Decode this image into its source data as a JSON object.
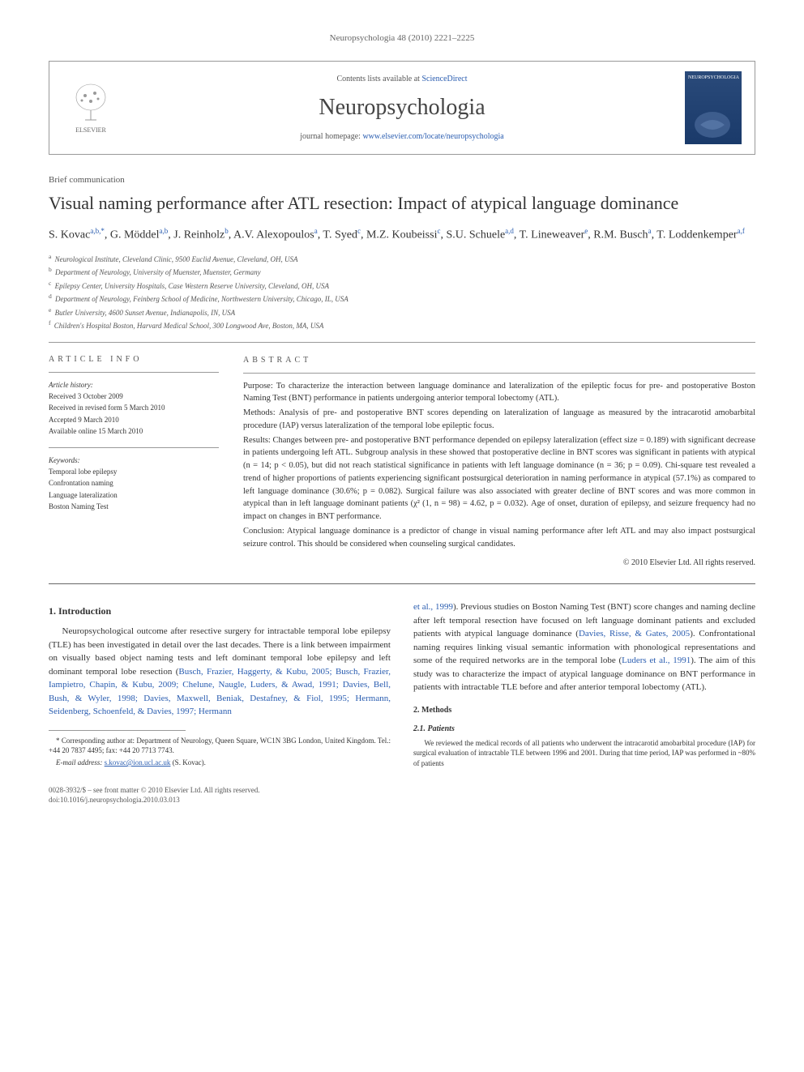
{
  "running_header": "Neuropsychologia 48 (2010) 2221–2225",
  "journal_box": {
    "contents_prefix": "Contents lists available at ",
    "contents_link": "ScienceDirect",
    "journal_name": "Neuropsychologia",
    "homepage_prefix": "journal homepage: ",
    "homepage_url": "www.elsevier.com/locate/neuropsychologia",
    "publisher": "ELSEVIER",
    "cover_label": "NEUROPSYCHOLOGIA"
  },
  "article_type": "Brief communication",
  "title": "Visual naming performance after ATL resection: Impact of atypical language dominance",
  "authors_html": "S. Kovac<sup>a,b,*</sup>, G. Möddel<sup>a,b</sup>, J. Reinholz<sup>b</sup>, A.V. Alexopoulos<sup>a</sup>, T. Syed<sup>c</sup>, M.Z. Koubeissi<sup>c</sup>, S.U. Schuele<sup>a,d</sup>, T. Lineweaver<sup>e</sup>, R.M. Busch<sup>a</sup>, T. Loddenkemper<sup>a,f</sup>",
  "affiliations": [
    {
      "sup": "a",
      "text": "Neurological Institute, Cleveland Clinic, 9500 Euclid Avenue, Cleveland, OH, USA"
    },
    {
      "sup": "b",
      "text": "Department of Neurology, University of Muenster, Muenster, Germany"
    },
    {
      "sup": "c",
      "text": "Epilepsy Center, University Hospitals, Case Western Reserve University, Cleveland, OH, USA"
    },
    {
      "sup": "d",
      "text": "Department of Neurology, Feinberg School of Medicine, Northwestern University, Chicago, IL, USA"
    },
    {
      "sup": "e",
      "text": "Butler University, 4600 Sunset Avenue, Indianapolis, IN, USA"
    },
    {
      "sup": "f",
      "text": "Children's Hospital Boston, Harvard Medical School, 300 Longwood Ave, Boston, MA, USA"
    }
  ],
  "article_info": {
    "heading": "ARTICLE INFO",
    "history_label": "Article history:",
    "history": [
      "Received 3 October 2009",
      "Received in revised form 5 March 2010",
      "Accepted 9 March 2010",
      "Available online 15 March 2010"
    ],
    "keywords_label": "Keywords:",
    "keywords": [
      "Temporal lobe epilepsy",
      "Confrontation naming",
      "Language lateralization",
      "Boston Naming Test"
    ]
  },
  "abstract": {
    "heading": "ABSTRACT",
    "purpose": "Purpose: To characterize the interaction between language dominance and lateralization of the epileptic focus for pre- and postoperative Boston Naming Test (BNT) performance in patients undergoing anterior temporal lobectomy (ATL).",
    "methods": "Methods: Analysis of pre- and postoperative BNT scores depending on lateralization of language as measured by the intracarotid amobarbital procedure (IAP) versus lateralization of the temporal lobe epileptic focus.",
    "results": "Results: Changes between pre- and postoperative BNT performance depended on epilepsy lateralization (effect size = 0.189) with significant decrease in patients undergoing left ATL. Subgroup analysis in these showed that postoperative decline in BNT scores was significant in patients with atypical (n = 14; p < 0.05), but did not reach statistical significance in patients with left language dominance (n = 36; p = 0.09). Chi-square test revealed a trend of higher proportions of patients experiencing significant postsurgical deterioration in naming performance in atypical (57.1%) as compared to left language dominance (30.6%; p = 0.082). Surgical failure was also associated with greater decline of BNT scores and was more common in atypical than in left language dominant patients (χ² (1, n = 98) = 4.62, p = 0.032). Age of onset, duration of epilepsy, and seizure frequency had no impact on changes in BNT performance.",
    "conclusion": "Conclusion: Atypical language dominance is a predictor of change in visual naming performance after left ATL and may also impact postsurgical seizure control. This should be considered when counseling surgical candidates.",
    "copyright": "© 2010 Elsevier Ltd. All rights reserved."
  },
  "body": {
    "intro_heading": "1. Introduction",
    "intro_p1": "Neuropsychological outcome after resective surgery for intractable temporal lobe epilepsy (TLE) has been investigated in detail over the last decades. There is a link between impairment on visually based object naming tests and left dominant temporal lobe epilepsy and left dominant temporal lobe resection (",
    "intro_cite1": "Busch, Frazier, Haggerty, & Kubu, 2005; Busch, Frazier, Iampietro, Chapin, & Kubu, 2009; Chelune, Naugle, Luders, & Awad, 1991; Davies, Bell, Bush, & Wyler, 1998; Davies, Maxwell, Beniak, Destafney, & Fiol, 1995; Hermann, Seidenberg, Schoenfeld, & Davies, 1997; Hermann",
    "intro_p2a": "et al., 1999",
    "intro_p2b": "). Previous studies on Boston Naming Test (BNT) score changes and naming decline after left temporal resection have focused on left language dominant patients and excluded patients with atypical language dominance (",
    "intro_cite2": "Davies, Risse, & Gates, 2005",
    "intro_p2c": "). Confrontational naming requires linking visual semantic information with phonological representations and some of the required networks are in the temporal lobe (",
    "intro_cite3": "Luders et al., 1991",
    "intro_p2d": "). The aim of this study was to characterize the impact of atypical language dominance on BNT performance in patients with intractable TLE before and after anterior temporal lobectomy (ATL).",
    "methods_heading": "2. Methods",
    "patients_heading": "2.1. Patients",
    "patients_p": "We reviewed the medical records of all patients who underwent the intracarotid amobarbital procedure (IAP) for surgical evaluation of intractable TLE between 1996 and 2001. During that time period, IAP was performed in ~80% of patients"
  },
  "footnotes": {
    "corr": "* Corresponding author at: Department of Neurology, Queen Square, WC1N 3BG London, United Kingdom. Tel.: +44 20 7837 4495; fax: +44 20 7713 7743.",
    "email_label": "E-mail address: ",
    "email": "s.kovac@ion.ucl.ac.uk",
    "email_suffix": " (S. Kovac)."
  },
  "footer": {
    "line1": "0028-3932/$ – see front matter © 2010 Elsevier Ltd. All rights reserved.",
    "line2": "doi:10.1016/j.neuropsychologia.2010.03.013"
  },
  "colors": {
    "link": "#2a5db0",
    "text": "#333333",
    "muted": "#555555",
    "border": "#999999",
    "cover_bg": "#2a4a7a"
  }
}
